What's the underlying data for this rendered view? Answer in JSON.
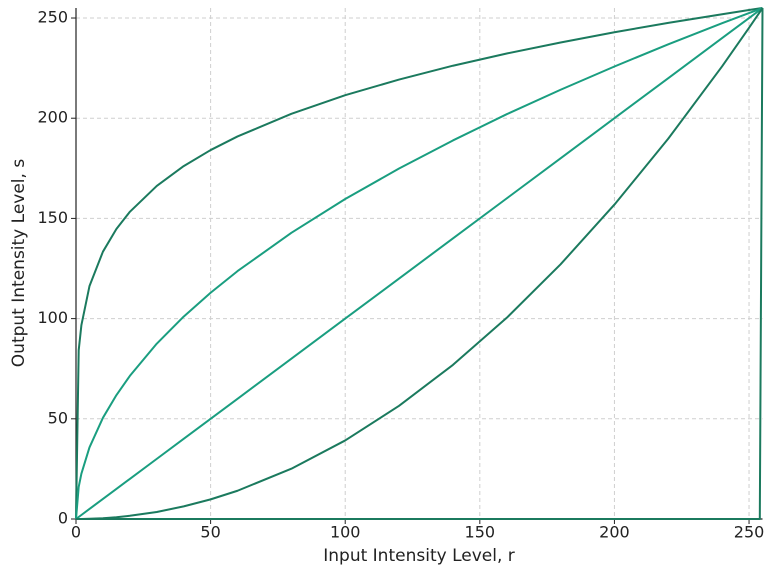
{
  "chart_data": {
    "type": "line",
    "xlabel": "Input Intensity Level, r",
    "ylabel": "Output Intensity Level, s",
    "x": [
      0,
      1,
      2,
      5,
      10,
      15,
      20,
      30,
      40,
      50,
      60,
      80,
      100,
      120,
      140,
      160,
      180,
      200,
      220,
      240,
      250,
      254,
      255
    ],
    "series": [
      {
        "color": "#1b7a5e",
        "values": [
          0,
          84.2,
          96.7,
          116.2,
          133.4,
          144.7,
          153.3,
          166.2,
          176.1,
          184.1,
          190.9,
          202.2,
          211.5,
          219.3,
          226.2,
          232.3,
          237.8,
          242.9,
          247.6,
          251.9,
          254.0,
          254.8,
          255
        ]
      },
      {
        "color": "#1a9e80",
        "values": [
          0,
          16.0,
          22.6,
          35.7,
          50.5,
          61.8,
          71.4,
          87.5,
          101.0,
          112.9,
          123.7,
          142.8,
          159.7,
          174.9,
          188.9,
          202.0,
          214.2,
          225.8,
          236.9,
          247.4,
          252.5,
          254.5,
          255
        ]
      },
      {
        "color": "#1a9e80",
        "values": [
          0,
          1,
          2,
          5,
          10,
          15,
          20,
          30,
          40,
          50,
          60,
          80,
          100,
          120,
          140,
          160,
          180,
          200,
          220,
          240,
          250,
          254,
          255
        ]
      },
      {
        "color": "#1b7a5e",
        "values": [
          0,
          0.0,
          0.0,
          0.1,
          0.4,
          0.9,
          1.6,
          3.5,
          6.3,
          9.8,
          14.1,
          25.1,
          39.2,
          56.5,
          76.9,
          100.4,
          127.1,
          156.9,
          189.8,
          225.9,
          245.1,
          253.0,
          255
        ]
      },
      {
        "color": "#1b7a5e",
        "values": [
          0,
          0,
          0,
          0,
          0,
          0,
          0,
          0,
          0,
          0,
          0,
          0,
          0,
          0,
          0,
          0,
          0,
          0,
          0,
          0,
          0,
          0,
          255
        ]
      }
    ],
    "xlim": [
      0,
      255
    ],
    "ylim": [
      0,
      255
    ],
    "xticks": [
      0,
      50,
      100,
      150,
      200,
      250
    ],
    "yticks": [
      0,
      50,
      100,
      150,
      200,
      250
    ],
    "grid": true
  }
}
